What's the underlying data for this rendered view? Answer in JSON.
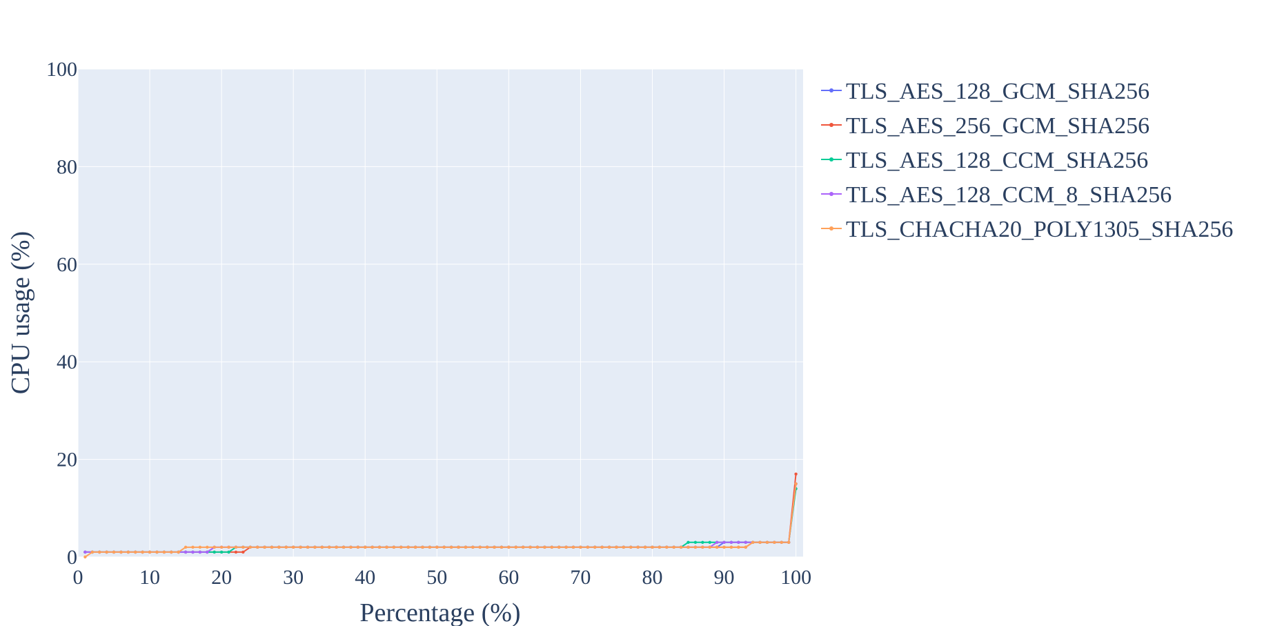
{
  "chart_data": {
    "type": "line",
    "xlabel": "Percentage (%)",
    "ylabel": "CPU usage (%)",
    "xlim": [
      0,
      101
    ],
    "ylim": [
      0,
      100
    ],
    "x_ticks": [
      0,
      10,
      20,
      30,
      40,
      50,
      60,
      70,
      80,
      90,
      100
    ],
    "y_ticks": [
      0,
      20,
      40,
      60,
      80,
      100
    ],
    "grid": true,
    "legend_position": "right",
    "plot_background": "#e5ecf6",
    "series": [
      {
        "name": "TLS_AES_128_GCM_SHA256",
        "color": "#636efa",
        "runs": [
          [
            1,
            1,
            1
          ],
          [
            2,
            15,
            1
          ],
          [
            16,
            18,
            1
          ],
          [
            19,
            23,
            2
          ],
          [
            24,
            84,
            2
          ],
          [
            85,
            89,
            2
          ],
          [
            90,
            93,
            3
          ],
          [
            94,
            99,
            3
          ]
        ],
        "last": [
          100,
          15
        ]
      },
      {
        "name": "TLS_AES_256_GCM_SHA256",
        "color": "#ef553b",
        "runs": [
          [
            1,
            1,
            1
          ],
          [
            2,
            21,
            1
          ],
          [
            22,
            23,
            1
          ],
          [
            24,
            84,
            2
          ],
          [
            85,
            89,
            2
          ],
          [
            90,
            93,
            2
          ],
          [
            94,
            99,
            3
          ]
        ],
        "last": [
          100,
          17
        ]
      },
      {
        "name": "TLS_AES_128_CCM_SHA256",
        "color": "#00cc96",
        "runs": [
          [
            1,
            1,
            1
          ],
          [
            2,
            18,
            1
          ],
          [
            19,
            21,
            1
          ],
          [
            22,
            23,
            2
          ],
          [
            24,
            84,
            2
          ],
          [
            85,
            89,
            3
          ],
          [
            90,
            93,
            3
          ],
          [
            94,
            99,
            3
          ]
        ],
        "last": [
          100,
          14
        ]
      },
      {
        "name": "TLS_AES_128_CCM_8_SHA256",
        "color": "#ab63fa",
        "runs": [
          [
            1,
            1,
            1
          ],
          [
            2,
            14,
            1
          ],
          [
            15,
            18,
            1
          ],
          [
            19,
            23,
            2
          ],
          [
            24,
            84,
            2
          ],
          [
            85,
            88,
            2
          ],
          [
            89,
            93,
            3
          ],
          [
            94,
            99,
            3
          ]
        ],
        "last": [
          100,
          15
        ]
      },
      {
        "name": "TLS_CHACHA20_POLY1305_SHA256",
        "color": "#ffa15a",
        "runs": [
          [
            1,
            1,
            0
          ],
          [
            2,
            14,
            1
          ],
          [
            15,
            23,
            2
          ],
          [
            24,
            84,
            2
          ],
          [
            85,
            93,
            2
          ],
          [
            94,
            99,
            3
          ]
        ],
        "last": [
          100,
          15
        ]
      }
    ]
  }
}
